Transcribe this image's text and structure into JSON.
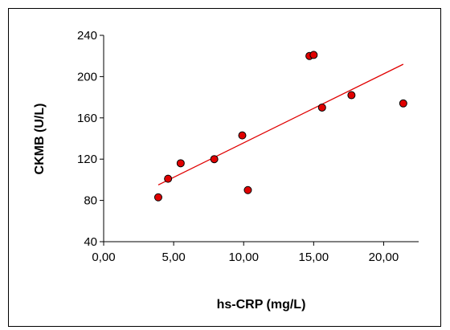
{
  "chart_data": {
    "type": "scatter",
    "title": "",
    "xlabel": "hs-CRP (mg/L)",
    "ylabel": "CKMB (U/L)",
    "xlim": [
      0,
      22.5
    ],
    "ylim": [
      40,
      240
    ],
    "x_ticks": [
      0,
      5,
      10,
      15,
      20
    ],
    "x_tick_labels": [
      "0,00",
      "5,00",
      "10,00",
      "15,00",
      "20,00"
    ],
    "y_ticks": [
      40,
      80,
      120,
      160,
      200,
      240
    ],
    "y_tick_labels": [
      "40",
      "80",
      "120",
      "160",
      "200",
      "240"
    ],
    "grid": false,
    "legend": "none",
    "marker_color": "#e00000",
    "marker_edge_color": "#000000",
    "trendline_color": "#e00000",
    "series": [
      {
        "x": [
          3.9,
          4.6,
          5.5,
          7.9,
          9.9,
          10.3,
          14.7,
          15.0,
          15.6,
          17.7,
          21.4
        ],
        "y": [
          83,
          101,
          116,
          120,
          143,
          90,
          220,
          221,
          170,
          182,
          174
        ]
      }
    ],
    "trendline": {
      "x": [
        3.9,
        21.4
      ],
      "y": [
        95,
        212
      ]
    }
  }
}
